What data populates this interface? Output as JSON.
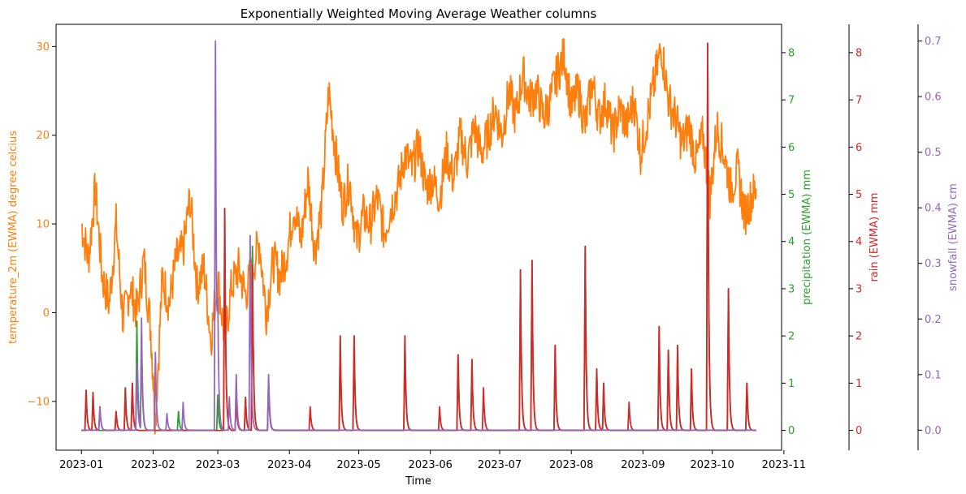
{
  "chart_data": {
    "type": "line",
    "title": "Exponentially Weighted Moving Average Weather columns",
    "xlabel": "Time",
    "x_ticks": [
      "2023-01",
      "2023-02",
      "2023-03",
      "2023-04",
      "2023-05",
      "2023-06",
      "2023-07",
      "2023-08",
      "2023-09",
      "2023-10",
      "2023-11"
    ],
    "x_range": [
      "2022-12-21",
      "2023-10-31"
    ],
    "x_data_range": [
      "2023-01-01",
      "2023-10-20"
    ],
    "axes": [
      {
        "key": "temperature",
        "label": "temperature_2m (EWMA) degree celcius",
        "side": "left",
        "color": "#ff7f0e",
        "ylim": [
          -15.5,
          32.5
        ],
        "ticks": [
          -10,
          0,
          10,
          20,
          30
        ]
      },
      {
        "key": "precipitation",
        "label": "precipitation (EWMA) mm",
        "side": "right",
        "color": "#2ca02c",
        "ylim": [
          -0.42,
          8.6
        ],
        "ticks": [
          0,
          1,
          2,
          3,
          4,
          5,
          6,
          7,
          8
        ]
      },
      {
        "key": "rain",
        "label": "rain (EWMA) mm",
        "side": "right",
        "color": "#d62728",
        "ylim": [
          -0.42,
          8.6
        ],
        "ticks": [
          0,
          1,
          2,
          3,
          4,
          5,
          6,
          7,
          8
        ]
      },
      {
        "key": "snowfall",
        "label": "snowfall (EWMA) cm",
        "side": "right",
        "color": "#9467bd",
        "ylim": [
          -0.036,
          0.73
        ],
        "ticks": [
          0.0,
          0.1,
          0.2,
          0.3,
          0.4,
          0.5,
          0.6,
          0.7
        ]
      }
    ],
    "series": [
      {
        "name": "temperature_2m",
        "axis": "temperature",
        "color": "#ff7f0e",
        "points": [
          [
            "2023-01-01",
            10
          ],
          [
            "2023-01-04",
            6
          ],
          [
            "2023-01-07",
            14
          ],
          [
            "2023-01-10",
            4
          ],
          [
            "2023-01-13",
            1
          ],
          [
            "2023-01-16",
            10
          ],
          [
            "2023-01-19",
            -1
          ],
          [
            "2023-01-22",
            3
          ],
          [
            "2023-01-25",
            0
          ],
          [
            "2023-01-28",
            6
          ],
          [
            "2023-01-31",
            -2
          ],
          [
            "2023-02-02",
            -12
          ],
          [
            "2023-02-05",
            4
          ],
          [
            "2023-02-08",
            1
          ],
          [
            "2023-02-11",
            6
          ],
          [
            "2023-02-14",
            7
          ],
          [
            "2023-02-17",
            13
          ],
          [
            "2023-02-20",
            3
          ],
          [
            "2023-02-23",
            5
          ],
          [
            "2023-02-26",
            -3
          ],
          [
            "2023-03-01",
            4
          ],
          [
            "2023-03-04",
            -3
          ],
          [
            "2023-03-07",
            3
          ],
          [
            "2023-03-10",
            5
          ],
          [
            "2023-03-13",
            2
          ],
          [
            "2023-03-16",
            5
          ],
          [
            "2023-03-19",
            8
          ],
          [
            "2023-03-22",
            0
          ],
          [
            "2023-03-25",
            6
          ],
          [
            "2023-03-28",
            4
          ],
          [
            "2023-03-31",
            7
          ],
          [
            "2023-04-03",
            12
          ],
          [
            "2023-04-06",
            8
          ],
          [
            "2023-04-09",
            15
          ],
          [
            "2023-04-12",
            7
          ],
          [
            "2023-04-15",
            12
          ],
          [
            "2023-04-18",
            25
          ],
          [
            "2023-04-21",
            18
          ],
          [
            "2023-04-24",
            12
          ],
          [
            "2023-04-27",
            15
          ],
          [
            "2023-04-30",
            8
          ],
          [
            "2023-05-03",
            11
          ],
          [
            "2023-05-06",
            10
          ],
          [
            "2023-05-09",
            13
          ],
          [
            "2023-05-12",
            9
          ],
          [
            "2023-05-15",
            12
          ],
          [
            "2023-05-18",
            14
          ],
          [
            "2023-05-21",
            18
          ],
          [
            "2023-05-24",
            16
          ],
          [
            "2023-05-27",
            19
          ],
          [
            "2023-05-30",
            14
          ],
          [
            "2023-06-02",
            15
          ],
          [
            "2023-06-05",
            13
          ],
          [
            "2023-06-08",
            18
          ],
          [
            "2023-06-11",
            15
          ],
          [
            "2023-06-14",
            20
          ],
          [
            "2023-06-17",
            17
          ],
          [
            "2023-06-20",
            21
          ],
          [
            "2023-06-23",
            18
          ],
          [
            "2023-06-26",
            20
          ],
          [
            "2023-06-29",
            23
          ],
          [
            "2023-07-02",
            20
          ],
          [
            "2023-07-05",
            25
          ],
          [
            "2023-07-08",
            22
          ],
          [
            "2023-07-11",
            27
          ],
          [
            "2023-07-14",
            24
          ],
          [
            "2023-07-17",
            25
          ],
          [
            "2023-07-20",
            22
          ],
          [
            "2023-07-23",
            24
          ],
          [
            "2023-07-26",
            27
          ],
          [
            "2023-07-29",
            29
          ],
          [
            "2023-08-01",
            23
          ],
          [
            "2023-08-04",
            25
          ],
          [
            "2023-08-07",
            21
          ],
          [
            "2023-08-10",
            26
          ],
          [
            "2023-08-13",
            22
          ],
          [
            "2023-08-16",
            24
          ],
          [
            "2023-08-19",
            20
          ],
          [
            "2023-08-22",
            23
          ],
          [
            "2023-08-25",
            21
          ],
          [
            "2023-08-28",
            24
          ],
          [
            "2023-08-31",
            18
          ],
          [
            "2023-09-03",
            22
          ],
          [
            "2023-09-06",
            26
          ],
          [
            "2023-09-09",
            30
          ],
          [
            "2023-09-12",
            24
          ],
          [
            "2023-09-15",
            22
          ],
          [
            "2023-09-18",
            19
          ],
          [
            "2023-09-21",
            21
          ],
          [
            "2023-09-24",
            17
          ],
          [
            "2023-09-27",
            20
          ],
          [
            "2023-09-30",
            13
          ],
          [
            "2023-10-03",
            21
          ],
          [
            "2023-10-06",
            18
          ],
          [
            "2023-10-09",
            14
          ],
          [
            "2023-10-12",
            16
          ],
          [
            "2023-10-15",
            11
          ],
          [
            "2023-10-18",
            13
          ],
          [
            "2023-10-20",
            14
          ]
        ]
      },
      {
        "name": "precipitation",
        "axis": "precipitation",
        "color": "#2ca02c",
        "base": 0,
        "spikes": [
          [
            "2023-01-03",
            0.85
          ],
          [
            "2023-01-06",
            0.8
          ],
          [
            "2023-01-16",
            0.4
          ],
          [
            "2023-01-20",
            0.9
          ],
          [
            "2023-01-23",
            1.0
          ],
          [
            "2023-01-25",
            2.3
          ],
          [
            "2023-01-27",
            2.0
          ],
          [
            "2023-02-12",
            0.4
          ],
          [
            "2023-03-01",
            0.75
          ],
          [
            "2023-03-04",
            4.7
          ],
          [
            "2023-03-09",
            0.7
          ],
          [
            "2023-03-13",
            0.7
          ],
          [
            "2023-03-16",
            3.9
          ],
          [
            "2023-03-23",
            1.0
          ],
          [
            "2023-04-23",
            2.0
          ],
          [
            "2023-04-29",
            2.0
          ],
          [
            "2023-05-21",
            2.0
          ],
          [
            "2023-06-13",
            1.6
          ],
          [
            "2023-06-19",
            1.5
          ],
          [
            "2023-07-10",
            3.4
          ],
          [
            "2023-07-15",
            3.6
          ],
          [
            "2023-07-25",
            1.8
          ],
          [
            "2023-08-07",
            3.9
          ],
          [
            "2023-08-12",
            1.3
          ],
          [
            "2023-08-15",
            1.0
          ],
          [
            "2023-09-08",
            2.2
          ],
          [
            "2023-09-12",
            1.7
          ],
          [
            "2023-09-16",
            1.8
          ],
          [
            "2023-09-22",
            1.3
          ],
          [
            "2023-09-29",
            8.2
          ],
          [
            "2023-10-08",
            3.0
          ],
          [
            "2023-10-16",
            1.0
          ]
        ]
      },
      {
        "name": "rain",
        "axis": "rain",
        "color": "#d62728",
        "base": 0,
        "spikes": [
          [
            "2023-01-03",
            0.85
          ],
          [
            "2023-01-06",
            0.8
          ],
          [
            "2023-01-09",
            0.5
          ],
          [
            "2023-01-16",
            0.4
          ],
          [
            "2023-01-20",
            0.9
          ],
          [
            "2023-01-23",
            1.0
          ],
          [
            "2023-03-04",
            4.7
          ],
          [
            "2023-03-09",
            0.7
          ],
          [
            "2023-03-13",
            0.7
          ],
          [
            "2023-03-16",
            3.5
          ],
          [
            "2023-03-23",
            1.0
          ],
          [
            "2023-04-10",
            0.5
          ],
          [
            "2023-04-23",
            2.0
          ],
          [
            "2023-04-29",
            2.0
          ],
          [
            "2023-05-21",
            2.0
          ],
          [
            "2023-06-05",
            0.5
          ],
          [
            "2023-06-13",
            1.6
          ],
          [
            "2023-06-19",
            1.5
          ],
          [
            "2023-06-24",
            0.9
          ],
          [
            "2023-07-10",
            3.4
          ],
          [
            "2023-07-15",
            3.6
          ],
          [
            "2023-07-25",
            1.8
          ],
          [
            "2023-08-07",
            3.9
          ],
          [
            "2023-08-12",
            1.3
          ],
          [
            "2023-08-15",
            1.0
          ],
          [
            "2023-08-26",
            0.6
          ],
          [
            "2023-09-08",
            2.2
          ],
          [
            "2023-09-12",
            1.7
          ],
          [
            "2023-09-16",
            1.8
          ],
          [
            "2023-09-22",
            1.3
          ],
          [
            "2023-09-29",
            8.2
          ],
          [
            "2023-10-08",
            3.0
          ],
          [
            "2023-10-16",
            1.0
          ]
        ]
      },
      {
        "name": "snowfall",
        "axis": "snowfall",
        "color": "#9467bd",
        "base": 0,
        "spikes": [
          [
            "2023-01-09",
            0.04
          ],
          [
            "2023-01-25",
            0.12
          ],
          [
            "2023-01-27",
            0.2
          ],
          [
            "2023-02-02",
            0.14
          ],
          [
            "2023-02-07",
            0.03
          ],
          [
            "2023-02-14",
            0.05
          ],
          [
            "2023-02-28",
            0.7
          ],
          [
            "2023-03-01",
            0.16
          ],
          [
            "2023-03-06",
            0.06
          ],
          [
            "2023-03-09",
            0.1
          ],
          [
            "2023-03-15",
            0.35
          ],
          [
            "2023-03-23",
            0.1
          ]
        ]
      }
    ]
  }
}
